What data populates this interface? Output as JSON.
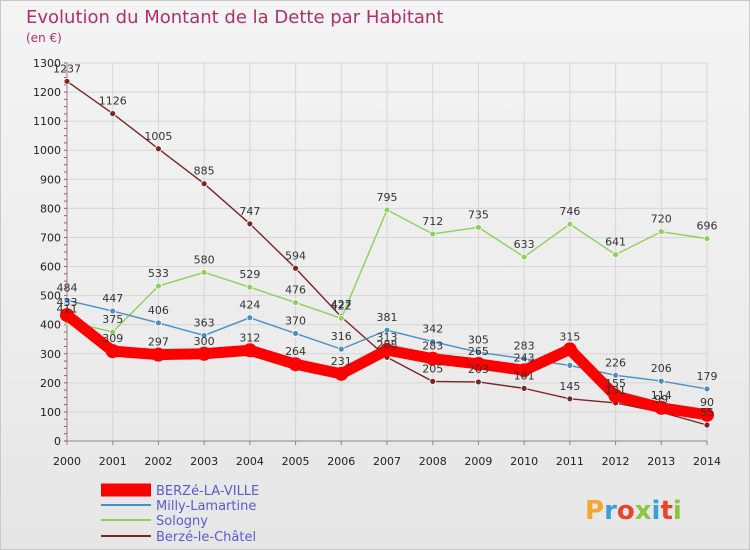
{
  "chart_data": {
    "type": "line",
    "title": "Evolution du Montant de la Dette par Habitant",
    "subtitle": "(en €)",
    "xlabel": "",
    "ylabel": "",
    "x": [
      "2000",
      "2001",
      "2002",
      "2003",
      "2004",
      "2005",
      "2006",
      "2007",
      "2008",
      "2009",
      "2010",
      "2011",
      "2012",
      "2013",
      "2014"
    ],
    "yticks": [
      "0",
      "100",
      "200",
      "300",
      "400",
      "500",
      "600",
      "700",
      "800",
      "900",
      "1000",
      "1100",
      "1200",
      "1300"
    ],
    "ylim": [
      0,
      1300
    ],
    "grid": true,
    "legend_position": "bottom-left",
    "series": [
      {
        "name": "BERZé-LA-VILLE",
        "color": "#ff0000",
        "values": [
          433,
          309,
          297,
          300,
          312,
          264,
          231,
          313,
          283,
          265,
          243,
          315,
          155,
          114,
          90
        ],
        "labels": [
          "433",
          "309",
          "297",
          "300",
          "312",
          "264",
          "231",
          "313",
          "283",
          "265",
          "243",
          "315",
          "155",
          "114",
          "90"
        ]
      },
      {
        "name": "Milly-Lamartine",
        "color": "#4a90c8",
        "values": [
          484,
          447,
          406,
          363,
          424,
          370,
          316,
          381,
          342,
          305,
          283,
          260,
          226,
          206,
          179
        ],
        "labels": [
          "484",
          "447",
          "406",
          "363",
          "424",
          "370",
          "316",
          "381",
          "342",
          "305",
          "283",
          "",
          "226",
          "206",
          "179"
        ]
      },
      {
        "name": "Sologny",
        "color": "#8ed05a",
        "values": [
          411,
          375,
          533,
          580,
          529,
          476,
          422,
          795,
          712,
          735,
          633,
          746,
          641,
          720,
          696
        ],
        "labels": [
          "411",
          "375",
          "533",
          "580",
          "529",
          "476",
          "422",
          "795",
          "712",
          "735",
          "633",
          "746",
          "641",
          "720",
          "696"
        ]
      },
      {
        "name": "Berzé-le-Châtel",
        "color": "#7a2626",
        "values": [
          1237,
          1126,
          1005,
          885,
          747,
          594,
          427,
          288,
          205,
          203,
          181,
          145,
          131,
          99,
          55
        ],
        "labels": [
          "1237",
          "1126",
          "1005",
          "885",
          "747",
          "594",
          "427",
          "288",
          "205",
          "203",
          "181",
          "145",
          "131",
          "99",
          "55"
        ]
      }
    ]
  },
  "logo": {
    "text": "Proxiti"
  }
}
